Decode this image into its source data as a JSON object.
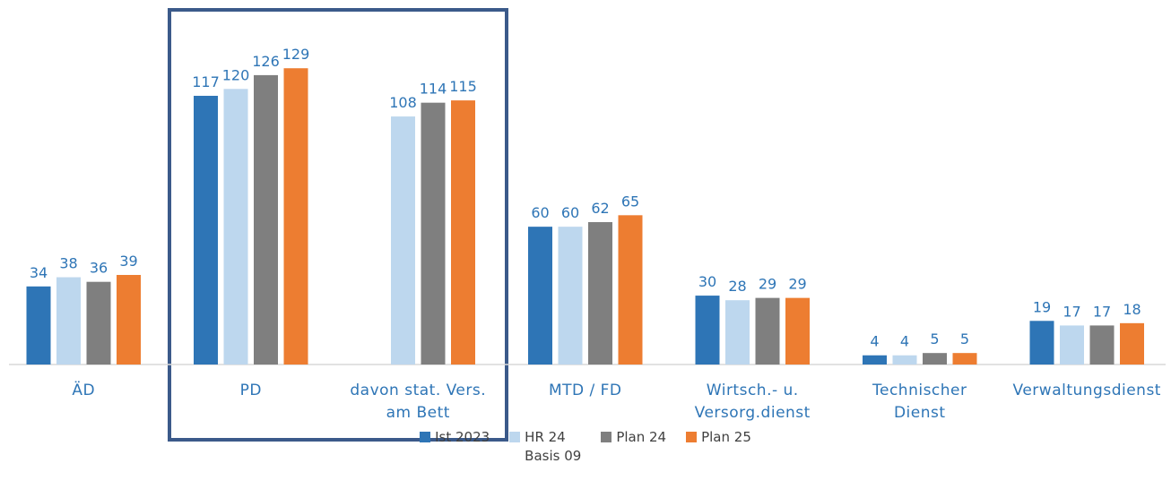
{
  "chart_data": {
    "type": "bar",
    "categories": [
      "ÄD",
      "PD",
      "davon stat. Vers.\nam Bett",
      "MTD / FD",
      "Wirtsch.- u.\nVersorg.dienst",
      "Technischer\nDienst",
      "Verwaltungsdienst"
    ],
    "series": [
      {
        "name": "Ist 2023",
        "color": "#2e75b6",
        "values": [
          34,
          117,
          null,
          60,
          30,
          4,
          19
        ]
      },
      {
        "name": "HR 24\nBasis 09",
        "color": "#bdd7ee",
        "values": [
          38,
          120,
          108,
          60,
          28,
          4,
          17
        ]
      },
      {
        "name": "Plan 24",
        "color": "#7f7f7f",
        "values": [
          36,
          126,
          114,
          62,
          29,
          5,
          17
        ]
      },
      {
        "name": "Plan 25",
        "color": "#ed7d31",
        "values": [
          39,
          129,
          115,
          65,
          29,
          5,
          18
        ]
      }
    ],
    "ylim": [
      0,
      140
    ],
    "legend": "bottom"
  }
}
